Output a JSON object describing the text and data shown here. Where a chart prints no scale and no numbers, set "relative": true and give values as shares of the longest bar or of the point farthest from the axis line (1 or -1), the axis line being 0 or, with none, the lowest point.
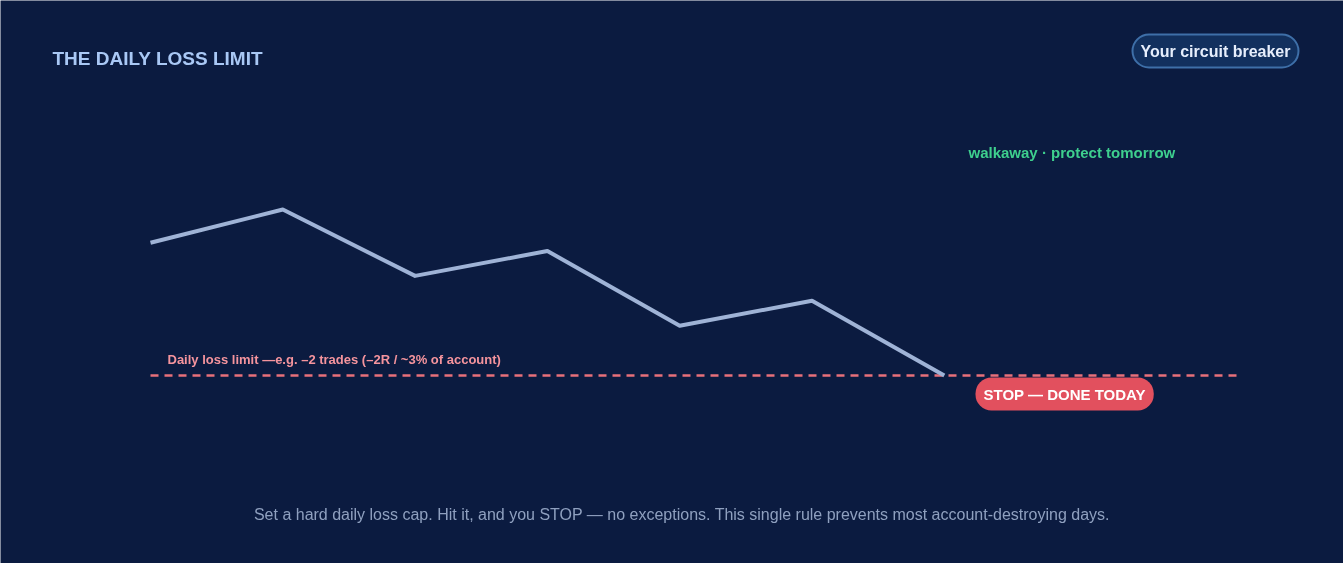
{
  "chart_data": {
    "type": "line",
    "title": "THE DAILY LOSS LIMIT",
    "relative": true,
    "categories": [
      null,
      null,
      null,
      null,
      null,
      null,
      null
    ],
    "series": [
      {
        "color": "#9fb3d6",
        "values": [
          0.8,
          1.0,
          0.6,
          0.75,
          0.3,
          0.45,
          0
        ]
      }
    ],
    "ref_lines": [
      {
        "axis": "y",
        "value": 0,
        "label": "Daily loss limit —e.g. –2 trades (–2R / ~3% of account)",
        "color": "#e8707a",
        "line_style": "dashed"
      }
    ],
    "annotations": [
      "Your circuit breaker",
      "walkaway · protect tomorrow",
      "STOP — DONE TODAY",
      "Set a hard daily loss cap. Hit it, and you STOP — no exceptions. This single rule prevents most account-destroying days."
    ]
  }
}
